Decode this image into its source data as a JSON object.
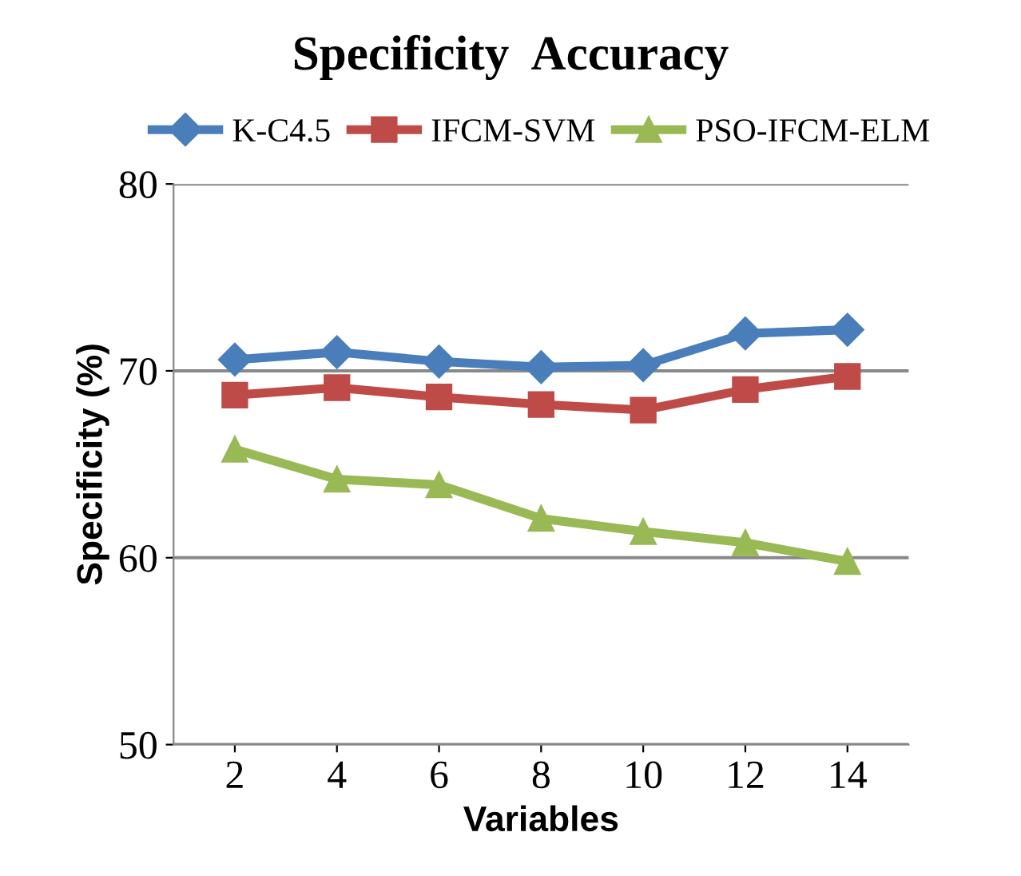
{
  "chart_data": {
    "type": "line",
    "title": "Specificity  Accuracy",
    "xlabel": "Variables",
    "ylabel": "Specificity (%)",
    "categories": [
      "2",
      "4",
      "6",
      "8",
      "10",
      "12",
      "14"
    ],
    "series": [
      {
        "name": "K-C4.5",
        "color": "#4a7ebb",
        "marker": "diamond",
        "values": [
          70.6,
          71.0,
          70.5,
          70.2,
          70.3,
          72.0,
          72.2
        ]
      },
      {
        "name": "IFCM-SVM",
        "color": "#be4b48",
        "marker": "square",
        "values": [
          68.7,
          69.1,
          68.6,
          68.2,
          67.9,
          69.0,
          69.7
        ]
      },
      {
        "name": "PSO-IFCM-ELM",
        "color": "#98b954",
        "marker": "triangle",
        "values": [
          65.8,
          64.2,
          63.9,
          62.1,
          61.4,
          60.8,
          59.8
        ]
      }
    ],
    "ylim": [
      50,
      80
    ],
    "yticks": [
      50,
      60,
      70,
      80
    ],
    "grid": "y",
    "legend": "top",
    "line_style": "solid"
  }
}
